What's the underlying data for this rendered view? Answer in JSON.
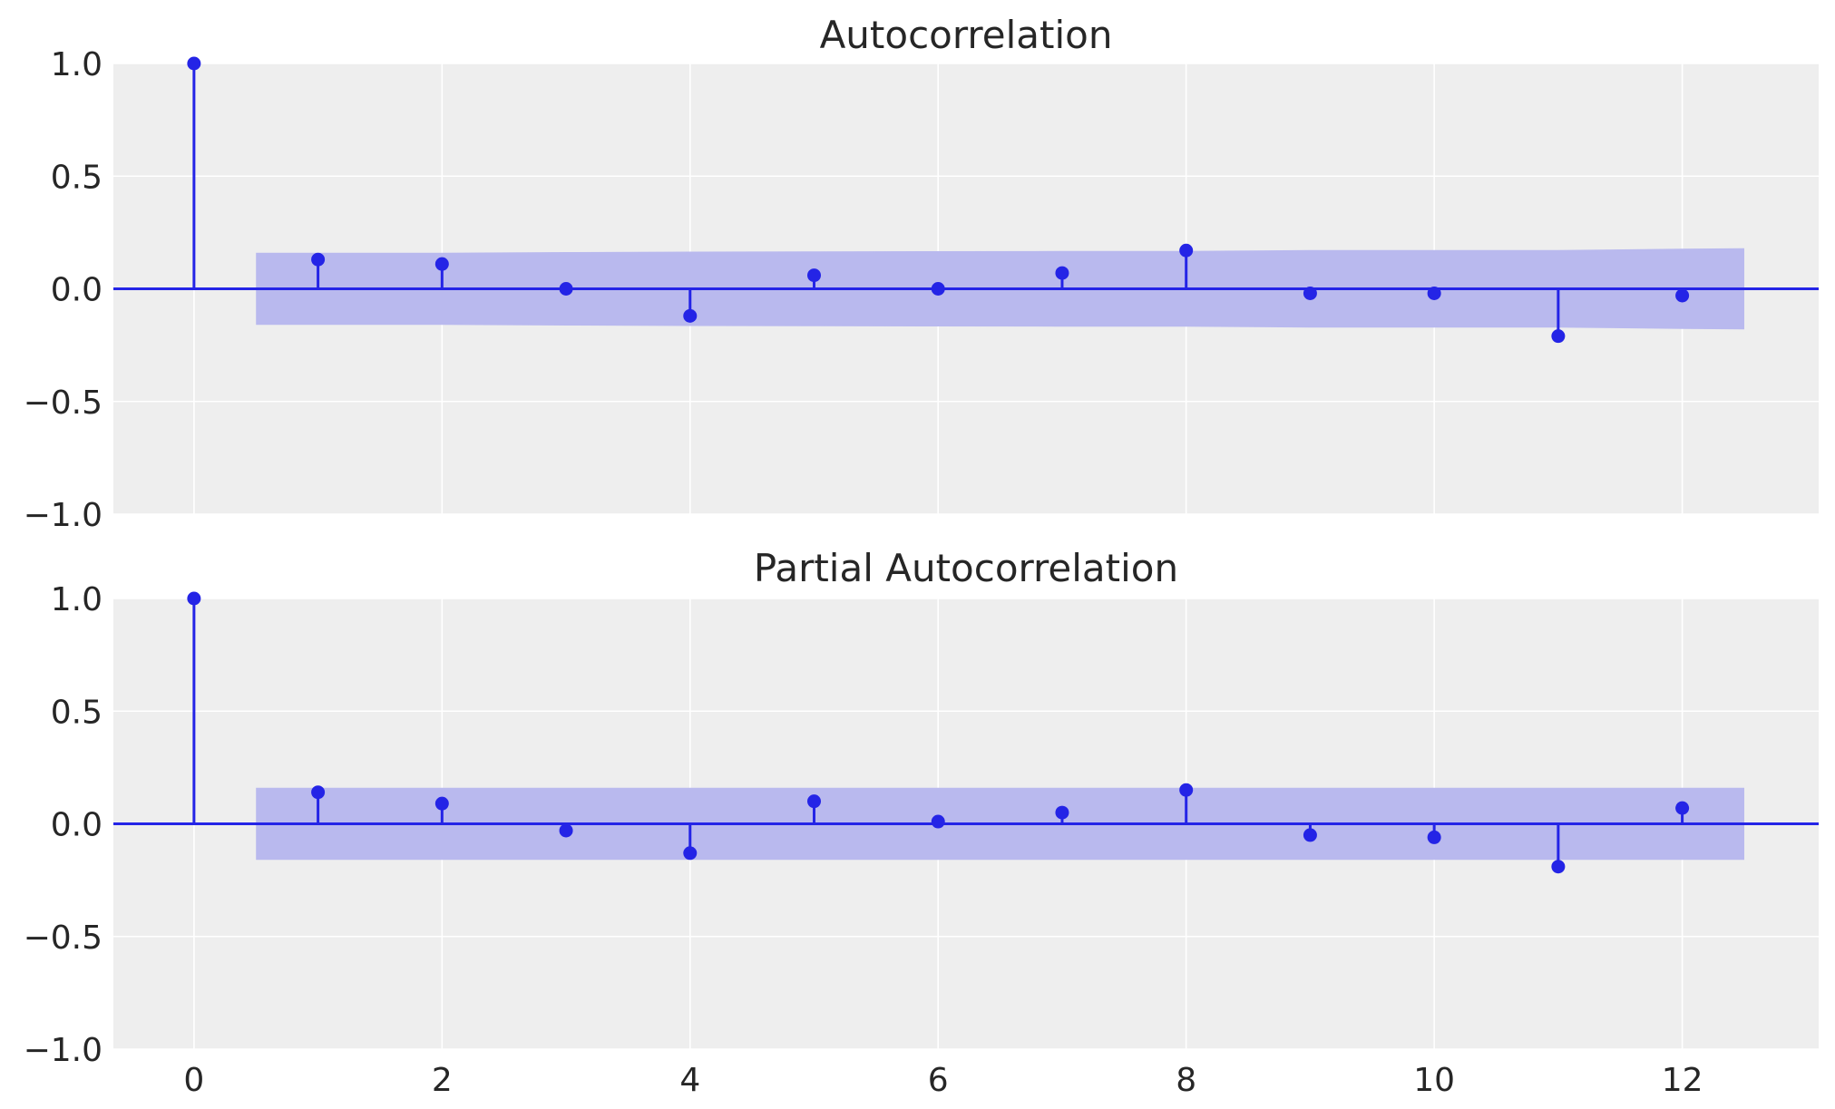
{
  "chart_data": [
    {
      "type": "stem",
      "title": "Autocorrelation",
      "xlabel": "",
      "ylabel": "",
      "xlim": [
        -0.65,
        13.1
      ],
      "ylim": [
        -1.0,
        1.0
      ],
      "x_ticks": [
        0,
        2,
        4,
        6,
        8,
        10,
        12
      ],
      "y_ticks": [
        -1.0,
        -0.5,
        0.0,
        0.5,
        1.0
      ],
      "y_tick_labels": [
        "−1.0",
        "−0.5",
        "0.0",
        "0.5",
        "1.0"
      ],
      "show_x_tick_labels": false,
      "grid": true,
      "lags": [
        0,
        1,
        2,
        3,
        4,
        5,
        6,
        7,
        8,
        9,
        10,
        11,
        12
      ],
      "values": [
        1.0,
        0.13,
        0.11,
        0.0,
        -0.12,
        0.06,
        0.0,
        0.07,
        0.17,
        -0.02,
        -0.02,
        -0.21,
        -0.03
      ],
      "confidence_band": {
        "x": [
          0.5,
          1,
          2,
          3,
          4,
          5,
          6,
          7,
          8,
          9,
          10,
          11,
          12,
          12.5
        ],
        "upper": [
          0.16,
          0.16,
          0.16,
          0.163,
          0.165,
          0.166,
          0.167,
          0.168,
          0.168,
          0.172,
          0.172,
          0.172,
          0.178,
          0.18
        ],
        "lower": [
          -0.16,
          -0.16,
          -0.16,
          -0.163,
          -0.165,
          -0.166,
          -0.167,
          -0.168,
          -0.168,
          -0.172,
          -0.172,
          -0.172,
          -0.178,
          -0.18
        ]
      },
      "colors": {
        "stem": "#2424e6",
        "band": "#b9b9ee",
        "background": "#eeeeee",
        "grid": "#ffffff"
      }
    },
    {
      "type": "stem",
      "title": "Partial Autocorrelation",
      "xlabel": "",
      "ylabel": "",
      "xlim": [
        -0.65,
        13.1
      ],
      "ylim": [
        -1.0,
        1.0
      ],
      "x_ticks": [
        0,
        2,
        4,
        6,
        8,
        10,
        12
      ],
      "y_ticks": [
        -1.0,
        -0.5,
        0.0,
        0.5,
        1.0
      ],
      "y_tick_labels": [
        "−1.0",
        "−0.5",
        "0.0",
        "0.5",
        "1.0"
      ],
      "show_x_tick_labels": true,
      "grid": true,
      "lags": [
        0,
        1,
        2,
        3,
        4,
        5,
        6,
        7,
        8,
        9,
        10,
        11,
        12
      ],
      "values": [
        1.0,
        0.14,
        0.09,
        -0.03,
        -0.13,
        0.1,
        0.01,
        0.05,
        0.15,
        -0.05,
        -0.06,
        -0.19,
        0.07
      ],
      "confidence_band": {
        "x": [
          0.5,
          12.5
        ],
        "upper": [
          0.16,
          0.16
        ],
        "lower": [
          -0.16,
          -0.16
        ]
      },
      "colors": {
        "stem": "#2424e6",
        "band": "#b9b9ee",
        "background": "#eeeeee",
        "grid": "#ffffff"
      }
    }
  ]
}
